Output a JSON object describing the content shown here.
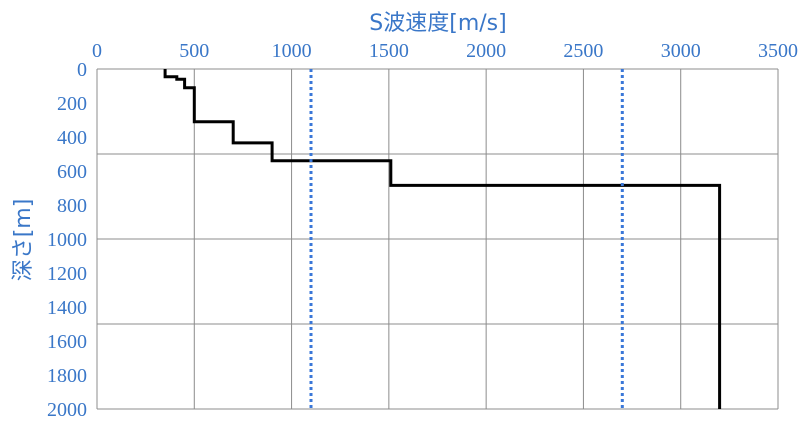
{
  "chart_data": {
    "type": "line",
    "x_title": "S波速度[m/s]",
    "y_title": "深さ[m]",
    "x_axis_position": "top",
    "y_axis_inverted": true,
    "xlim": [
      0,
      3500
    ],
    "ylim": [
      0,
      2000
    ],
    "x_ticks": [
      "0",
      "500",
      "1000",
      "1500",
      "2000",
      "2500",
      "3000",
      "3500"
    ],
    "y_ticks": [
      "0",
      "200",
      "400",
      "600",
      "800",
      "1000",
      "1200",
      "1400",
      "1600",
      "1800",
      "2000"
    ],
    "x_tick_values": [
      0,
      500,
      1000,
      1500,
      2000,
      2500,
      3000,
      3500
    ],
    "y_tick_values": [
      0,
      200,
      400,
      600,
      800,
      1000,
      1200,
      1400,
      1600,
      1800,
      2000
    ],
    "grid": {
      "vertical_every": 500,
      "horizontal_every": 500
    },
    "series": [
      {
        "style": "solid",
        "color": "#000000",
        "points": [
          {
            "x": 350,
            "y": 0
          },
          {
            "x": 350,
            "y": 45
          },
          {
            "x": 410,
            "y": 45
          },
          {
            "x": 410,
            "y": 60
          },
          {
            "x": 450,
            "y": 60
          },
          {
            "x": 450,
            "y": 110
          },
          {
            "x": 500,
            "y": 110
          },
          {
            "x": 500,
            "y": 310
          },
          {
            "x": 700,
            "y": 310
          },
          {
            "x": 700,
            "y": 435
          },
          {
            "x": 900,
            "y": 435
          },
          {
            "x": 900,
            "y": 540
          },
          {
            "x": 1510,
            "y": 540
          },
          {
            "x": 1510,
            "y": 685
          },
          {
            "x": 3200,
            "y": 685
          },
          {
            "x": 3200,
            "y": 2000
          }
        ]
      },
      {
        "style": "dotted",
        "color": "#3a77d8",
        "points": [
          {
            "x": 1100,
            "y": 0
          },
          {
            "x": 1100,
            "y": 2000
          }
        ]
      },
      {
        "style": "dotted",
        "color": "#3a77d8",
        "points": [
          {
            "x": 2700,
            "y": 0
          },
          {
            "x": 2700,
            "y": 2000
          }
        ]
      }
    ],
    "colors": {
      "label": "#3a77c8",
      "grid": "#8c8c8c",
      "axis": "#8c8c8c"
    }
  }
}
